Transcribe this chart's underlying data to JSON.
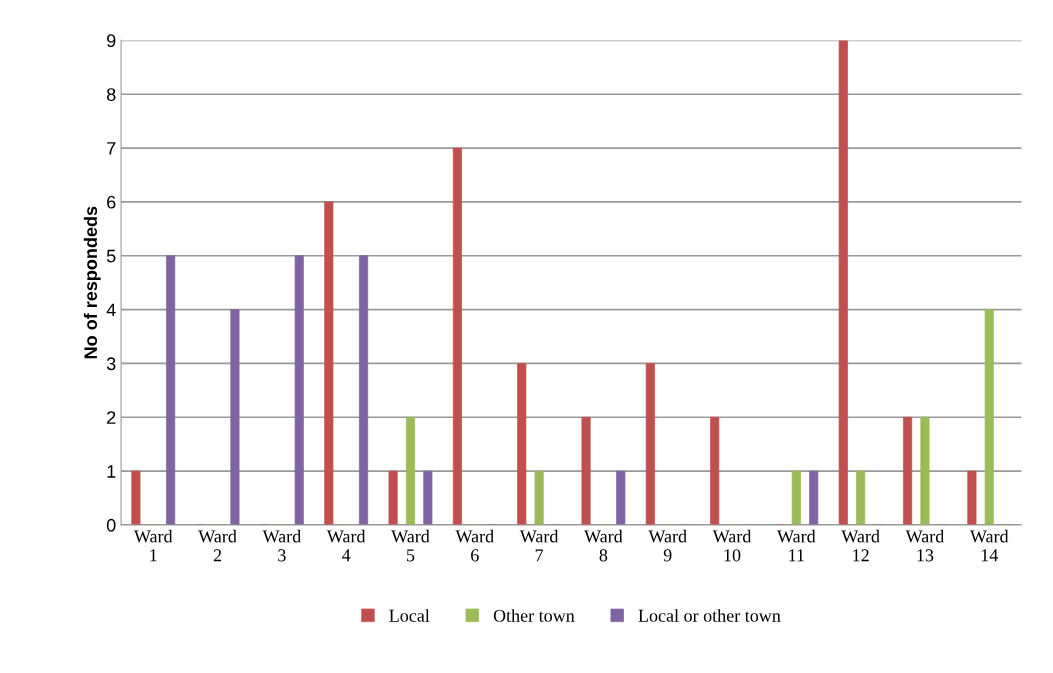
{
  "chart_data": {
    "type": "bar",
    "ylabel": "No of respondeds",
    "categories": [
      "Ward\n1",
      "Ward\n2",
      "Ward\n3",
      "Ward\n4",
      "Ward\n5",
      "Ward\n6",
      "Ward\n7",
      "Ward\n8",
      "Ward\n9",
      "Ward\n10",
      "Ward\n11",
      "Ward\n12",
      "Ward\n13",
      "Ward\n14"
    ],
    "series": [
      {
        "name": "Local",
        "color": "#c0504d",
        "values": [
          1,
          0,
          0,
          6,
          1,
          7,
          3,
          2,
          3,
          2,
          0,
          9,
          2,
          1
        ]
      },
      {
        "name": "Other town",
        "color": "#9bbb59",
        "values": [
          0,
          0,
          0,
          0,
          2,
          0,
          1,
          0,
          0,
          0,
          1,
          1,
          2,
          4
        ]
      },
      {
        "name": "Local or other town",
        "color": "#8064a2",
        "values": [
          5,
          4,
          5,
          5,
          1,
          0,
          0,
          1,
          0,
          0,
          1,
          0,
          0,
          0
        ]
      }
    ],
    "ylim": [
      0,
      9
    ],
    "yticks": [
      0,
      1,
      2,
      3,
      4,
      5,
      6,
      7,
      8,
      9
    ],
    "grid": "y",
    "legend": "bottom"
  }
}
